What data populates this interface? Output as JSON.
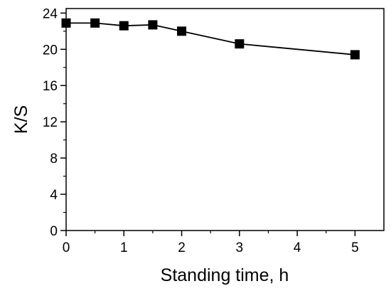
{
  "chart_data": {
    "type": "line",
    "title": "",
    "xlabel": "Standing time, h",
    "ylabel": "K/S",
    "xlim": [
      0,
      5.5
    ],
    "ylim": [
      0,
      24.5
    ],
    "xticks": [
      0,
      1,
      2,
      3,
      4,
      5
    ],
    "yticks": [
      0,
      4,
      8,
      12,
      16,
      20,
      24
    ],
    "grid": false,
    "series": [
      {
        "x": [
          0,
          0.5,
          1,
          1.5,
          2,
          3,
          5
        ],
        "y": [
          22.9,
          22.9,
          22.6,
          22.7,
          22.0,
          20.6,
          19.4
        ]
      }
    ],
    "colors": {
      "line": "#000000",
      "marker": "#000000"
    },
    "marker": "square"
  }
}
